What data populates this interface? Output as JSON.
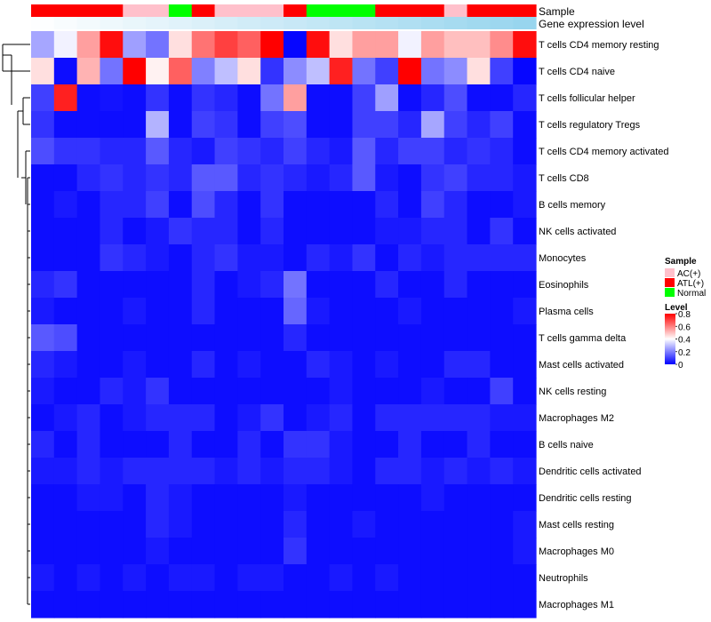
{
  "chart_data": {
    "type": "heatmap",
    "annotation_labels": {
      "sample": "Sample",
      "gene_expression": "Gene expression level"
    },
    "rows": [
      "T cells CD4 memory resting",
      "T cells CD4 naive",
      "T cells follicular helper",
      "T cells regulatory  Tregs",
      "T cells CD4 memory activated",
      "T cells CD8",
      "B cells memory",
      "NK cells activated",
      "Monocytes",
      "Eosinophils",
      "Plasma cells",
      "T cells gamma delta",
      "Mast cells activated",
      "NK cells resting",
      "Macrophages M2",
      "B cells naive",
      "Dendritic cells activated",
      "Dendritic cells resting",
      "Mast cells resting",
      "Macrophages M0",
      "Neutrophils",
      "Macrophages M1"
    ],
    "sample_groups": [
      "ATL(+)",
      "ATL(+)",
      "ATL(+)",
      "ATL(+)",
      "AC(+)",
      "AC(+)",
      "Normal",
      "ATL(+)",
      "AC(+)",
      "AC(+)",
      "AC(+)",
      "ATL(+)",
      "Normal",
      "Normal",
      "Normal",
      "ATL(+)",
      "ATL(+)",
      "ATL(+)",
      "AC(+)",
      "ATL(+)",
      "ATL(+)",
      "ATL(+)"
    ],
    "gene_expression_level": [
      0.02,
      0.06,
      0.1,
      0.14,
      0.18,
      0.22,
      0.26,
      0.3,
      0.34,
      0.38,
      0.42,
      0.46,
      0.5,
      0.54,
      0.58,
      0.62,
      0.66,
      0.7,
      0.74,
      0.78,
      0.82,
      0.86
    ],
    "values": [
      [
        0.26,
        0.38,
        0.55,
        0.78,
        0.25,
        0.18,
        0.45,
        0.62,
        0.7,
        0.65,
        0.8,
        0.01,
        0.78,
        0.45,
        0.55,
        0.55,
        0.38,
        0.55,
        0.5,
        0.5,
        0.58,
        0.78
      ],
      [
        0.45,
        0.02,
        0.52,
        0.18,
        0.8,
        0.42,
        0.65,
        0.2,
        0.3,
        0.45,
        0.08,
        0.22,
        0.3,
        0.75,
        0.18,
        0.1,
        0.8,
        0.18,
        0.22,
        0.45,
        0.1,
        0.01
      ],
      [
        0.1,
        0.75,
        0.02,
        0.03,
        0.02,
        0.08,
        0.02,
        0.08,
        0.06,
        0.02,
        0.18,
        0.55,
        0.02,
        0.02,
        0.1,
        0.25,
        0.02,
        0.06,
        0.12,
        0.02,
        0.02,
        0.06
      ],
      [
        0.08,
        0.02,
        0.02,
        0.02,
        0.02,
        0.28,
        0.02,
        0.1,
        0.08,
        0.02,
        0.1,
        0.12,
        0.02,
        0.02,
        0.1,
        0.1,
        0.06,
        0.26,
        0.1,
        0.06,
        0.1,
        0.02
      ],
      [
        0.12,
        0.08,
        0.08,
        0.06,
        0.06,
        0.14,
        0.06,
        0.04,
        0.1,
        0.08,
        0.06,
        0.1,
        0.06,
        0.04,
        0.14,
        0.06,
        0.1,
        0.1,
        0.06,
        0.08,
        0.06,
        0.02
      ],
      [
        0.02,
        0.02,
        0.06,
        0.08,
        0.06,
        0.08,
        0.06,
        0.14,
        0.14,
        0.06,
        0.08,
        0.06,
        0.04,
        0.06,
        0.14,
        0.04,
        0.02,
        0.08,
        0.1,
        0.06,
        0.06,
        0.04
      ],
      [
        0.02,
        0.04,
        0.02,
        0.06,
        0.06,
        0.1,
        0.02,
        0.12,
        0.06,
        0.02,
        0.08,
        0.02,
        0.02,
        0.02,
        0.02,
        0.06,
        0.02,
        0.1,
        0.06,
        0.02,
        0.02,
        0.04
      ],
      [
        0.02,
        0.02,
        0.02,
        0.06,
        0.02,
        0.04,
        0.08,
        0.06,
        0.06,
        0.02,
        0.06,
        0.02,
        0.02,
        0.02,
        0.02,
        0.04,
        0.04,
        0.06,
        0.06,
        0.02,
        0.08,
        0.02
      ],
      [
        0.02,
        0.02,
        0.02,
        0.08,
        0.06,
        0.04,
        0.02,
        0.06,
        0.08,
        0.04,
        0.04,
        0.02,
        0.06,
        0.04,
        0.08,
        0.02,
        0.06,
        0.04,
        0.06,
        0.06,
        0.06,
        0.06
      ],
      [
        0.06,
        0.08,
        0.02,
        0.02,
        0.02,
        0.02,
        0.02,
        0.06,
        0.02,
        0.04,
        0.06,
        0.18,
        0.02,
        0.02,
        0.02,
        0.06,
        0.02,
        0.02,
        0.06,
        0.02,
        0.02,
        0.02
      ],
      [
        0.04,
        0.02,
        0.02,
        0.02,
        0.04,
        0.02,
        0.02,
        0.06,
        0.02,
        0.02,
        0.02,
        0.16,
        0.04,
        0.02,
        0.02,
        0.02,
        0.04,
        0.02,
        0.02,
        0.02,
        0.02,
        0.04
      ],
      [
        0.14,
        0.12,
        0.02,
        0.02,
        0.02,
        0.02,
        0.02,
        0.02,
        0.02,
        0.02,
        0.02,
        0.06,
        0.02,
        0.02,
        0.02,
        0.02,
        0.02,
        0.02,
        0.02,
        0.02,
        0.02,
        0.02
      ],
      [
        0.06,
        0.04,
        0.02,
        0.02,
        0.04,
        0.02,
        0.02,
        0.06,
        0.02,
        0.04,
        0.02,
        0.02,
        0.06,
        0.04,
        0.02,
        0.04,
        0.02,
        0.02,
        0.06,
        0.06,
        0.02,
        0.02
      ],
      [
        0.04,
        0.02,
        0.02,
        0.06,
        0.04,
        0.08,
        0.02,
        0.02,
        0.02,
        0.02,
        0.02,
        0.02,
        0.02,
        0.04,
        0.02,
        0.02,
        0.02,
        0.04,
        0.02,
        0.02,
        0.1,
        0.02
      ],
      [
        0.02,
        0.04,
        0.06,
        0.02,
        0.04,
        0.06,
        0.06,
        0.06,
        0.02,
        0.04,
        0.08,
        0.02,
        0.04,
        0.06,
        0.02,
        0.06,
        0.06,
        0.06,
        0.06,
        0.06,
        0.04,
        0.04
      ],
      [
        0.06,
        0.02,
        0.06,
        0.02,
        0.02,
        0.02,
        0.06,
        0.02,
        0.02,
        0.06,
        0.02,
        0.08,
        0.08,
        0.04,
        0.02,
        0.02,
        0.06,
        0.02,
        0.02,
        0.06,
        0.02,
        0.02
      ],
      [
        0.04,
        0.04,
        0.06,
        0.04,
        0.06,
        0.06,
        0.06,
        0.06,
        0.04,
        0.06,
        0.04,
        0.06,
        0.06,
        0.04,
        0.02,
        0.06,
        0.06,
        0.04,
        0.06,
        0.04,
        0.06,
        0.04
      ],
      [
        0.02,
        0.02,
        0.04,
        0.04,
        0.02,
        0.06,
        0.04,
        0.02,
        0.02,
        0.02,
        0.02,
        0.04,
        0.02,
        0.02,
        0.02,
        0.02,
        0.02,
        0.04,
        0.02,
        0.02,
        0.02,
        0.02
      ],
      [
        0.02,
        0.02,
        0.02,
        0.02,
        0.02,
        0.06,
        0.04,
        0.02,
        0.02,
        0.02,
        0.02,
        0.06,
        0.02,
        0.02,
        0.04,
        0.02,
        0.02,
        0.02,
        0.02,
        0.02,
        0.02,
        0.04
      ],
      [
        0.02,
        0.02,
        0.02,
        0.02,
        0.02,
        0.04,
        0.02,
        0.02,
        0.02,
        0.02,
        0.02,
        0.08,
        0.02,
        0.02,
        0.02,
        0.02,
        0.02,
        0.02,
        0.02,
        0.02,
        0.02,
        0.04
      ],
      [
        0.04,
        0.02,
        0.04,
        0.02,
        0.04,
        0.02,
        0.04,
        0.04,
        0.02,
        0.04,
        0.04,
        0.02,
        0.02,
        0.04,
        0.02,
        0.04,
        0.02,
        0.02,
        0.02,
        0.02,
        0.02,
        0.02
      ],
      [
        0.02,
        0.02,
        0.02,
        0.02,
        0.02,
        0.02,
        0.02,
        0.02,
        0.02,
        0.02,
        0.02,
        0.02,
        0.02,
        0.02,
        0.02,
        0.02,
        0.02,
        0.02,
        0.02,
        0.02,
        0.02,
        0.02
      ]
    ],
    "legend": {
      "sample_title": "Sample",
      "sample_entries": [
        {
          "label": "AC(+)",
          "color": "#ffc0cb"
        },
        {
          "label": "ATL(+)",
          "color": "#ff0000"
        },
        {
          "label": "Normal",
          "color": "#00ff00"
        }
      ],
      "level_title": "Level",
      "level_ticks": [
        "0.8",
        "0.6",
        "0.4",
        "0.2",
        "0"
      ],
      "level_tick_values": [
        0.8,
        0.6,
        0.4,
        0.2,
        0
      ],
      "scale": {
        "min": 0,
        "mid": 0.4,
        "max": 0.8,
        "low_color": "#0000ff",
        "mid_color": "#ffffff",
        "high_color": "#ff0000"
      }
    },
    "gene_expression_colors": {
      "low": "#ffffff",
      "high": "#87ceeb"
    }
  }
}
